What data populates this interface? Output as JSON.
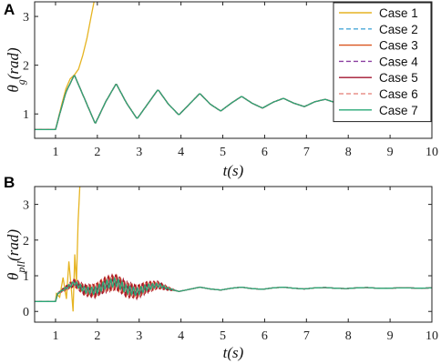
{
  "chart_data": [
    {
      "type": "line",
      "panel": "A",
      "ylabel_main": "θ",
      "ylabel_sub": "g",
      "ylabel_unit": "(rad)",
      "xlabel_main": "t",
      "xlabel_unit": "(s)",
      "xlim": [
        0.5,
        10
      ],
      "ylim": [
        0.5,
        3.3
      ],
      "xticks": [
        1,
        2,
        3,
        4,
        5,
        6,
        7,
        8,
        9,
        10
      ],
      "yticks": [
        1,
        2,
        3
      ],
      "legend": "top-right",
      "series": [
        {
          "name": "Case 1",
          "color": "#e6b422",
          "dash": "",
          "x": [
            0.5,
            1.0,
            1.05,
            1.15,
            1.25,
            1.35,
            1.45,
            1.55,
            1.65,
            1.75,
            1.85,
            1.92
          ],
          "y": [
            0.68,
            0.68,
            0.85,
            1.2,
            1.52,
            1.72,
            1.8,
            1.92,
            2.2,
            2.55,
            3.0,
            3.3
          ]
        },
        {
          "name": "Case 2",
          "color": "#4aa8d8",
          "dash": "5,3",
          "shared": true
        },
        {
          "name": "Case 3",
          "color": "#d9541e",
          "dash": "",
          "shared": true
        },
        {
          "name": "Case 4",
          "color": "#8a3fa0",
          "dash": "5,3",
          "shared": true
        },
        {
          "name": "Case 5",
          "color": "#a2142f",
          "dash": "",
          "shared": true
        },
        {
          "name": "Case 6",
          "color": "#e8908a",
          "dash": "5,3",
          "shared": true
        },
        {
          "name": "Case 7",
          "color": "#2aa877",
          "dash": "",
          "shared": true
        }
      ],
      "shared_curve": {
        "x": [
          0.5,
          1.0,
          1.1,
          1.25,
          1.45,
          1.7,
          1.95,
          2.2,
          2.45,
          2.7,
          2.95,
          3.2,
          3.45,
          3.7,
          3.95,
          4.2,
          4.45,
          4.7,
          4.95,
          5.2,
          5.45,
          5.7,
          5.95,
          6.2,
          6.45,
          6.7,
          6.95,
          7.2,
          7.45,
          7.7,
          7.95,
          8.2,
          8.45,
          8.7,
          8.95,
          9.2,
          9.45,
          9.7,
          10.0
        ],
        "y": [
          0.68,
          0.68,
          1.0,
          1.45,
          1.8,
          1.3,
          0.8,
          1.25,
          1.62,
          1.22,
          0.9,
          1.2,
          1.5,
          1.2,
          0.98,
          1.2,
          1.42,
          1.2,
          1.06,
          1.22,
          1.36,
          1.22,
          1.12,
          1.24,
          1.32,
          1.22,
          1.15,
          1.25,
          1.3,
          1.23,
          1.19,
          1.26,
          1.29,
          1.24,
          1.22,
          1.26,
          1.28,
          1.25,
          1.26
        ]
      }
    },
    {
      "type": "line",
      "panel": "B",
      "ylabel_main": "θ",
      "ylabel_sub": "pll",
      "ylabel_unit": "(rad)",
      "xlabel_main": "t",
      "xlabel_unit": "(s)",
      "xlim": [
        0.5,
        10
      ],
      "ylim": [
        -0.3,
        3.5
      ],
      "xticks": [
        1,
        2,
        3,
        4,
        5,
        6,
        7,
        8,
        9,
        10
      ],
      "yticks": [
        0,
        1,
        2,
        3
      ],
      "series": [
        {
          "name": "Case 1",
          "color": "#e6b422",
          "dash": "",
          "x": [
            0.5,
            1.0,
            1.02,
            1.1,
            1.18,
            1.26,
            1.32,
            1.38,
            1.42,
            1.46,
            1.5,
            1.54,
            1.58
          ],
          "y": [
            0.28,
            0.28,
            0.5,
            0.4,
            0.95,
            0.35,
            1.4,
            0.6,
            0.0,
            1.6,
            0.8,
            2.5,
            3.5
          ]
        },
        {
          "name": "Case 2",
          "color": "#4aa8d8",
          "dash": "5,3",
          "osc_amp": 0.16,
          "osc_phase": 0.0
        },
        {
          "name": "Case 3",
          "color": "#d9541e",
          "dash": "",
          "osc_amp": 0.2,
          "osc_phase": 1.0
        },
        {
          "name": "Case 4",
          "color": "#8a3fa0",
          "dash": "5,3",
          "osc_amp": 0.14,
          "osc_phase": 2.0
        },
        {
          "name": "Case 5",
          "color": "#a2142f",
          "dash": "",
          "osc_amp": 0.22,
          "osc_phase": 2.6
        },
        {
          "name": "Case 6",
          "color": "#e8908a",
          "dash": "5,3",
          "osc_amp": 0.18,
          "osc_phase": 3.6
        },
        {
          "name": "Case 7",
          "color": "#2aa877",
          "dash": "",
          "osc_amp": 0.12,
          "osc_phase": 4.6
        }
      ],
      "shared_curve": {
        "x": [
          0.5,
          1.0,
          1.05,
          1.2,
          1.45,
          1.7,
          1.95,
          2.2,
          2.45,
          2.7,
          2.95,
          3.2,
          3.45,
          3.7,
          3.95,
          4.2,
          4.45,
          4.7,
          4.95,
          5.2,
          5.45,
          5.7,
          5.95,
          6.2,
          6.45,
          6.7,
          6.95,
          7.2,
          7.45,
          7.7,
          7.95,
          8.2,
          8.45,
          8.7,
          8.95,
          9.2,
          9.45,
          9.7,
          10.0
        ],
        "y": [
          0.28,
          0.28,
          0.5,
          0.62,
          0.8,
          0.6,
          0.58,
          0.75,
          0.82,
          0.62,
          0.55,
          0.68,
          0.74,
          0.64,
          0.56,
          0.62,
          0.68,
          0.63,
          0.6,
          0.65,
          0.68,
          0.64,
          0.62,
          0.66,
          0.68,
          0.65,
          0.63,
          0.66,
          0.67,
          0.65,
          0.64,
          0.66,
          0.67,
          0.65,
          0.65,
          0.66,
          0.66,
          0.65,
          0.66
        ]
      },
      "osc_window": [
        1.0,
        3.9
      ],
      "osc_freq": 11
    }
  ]
}
